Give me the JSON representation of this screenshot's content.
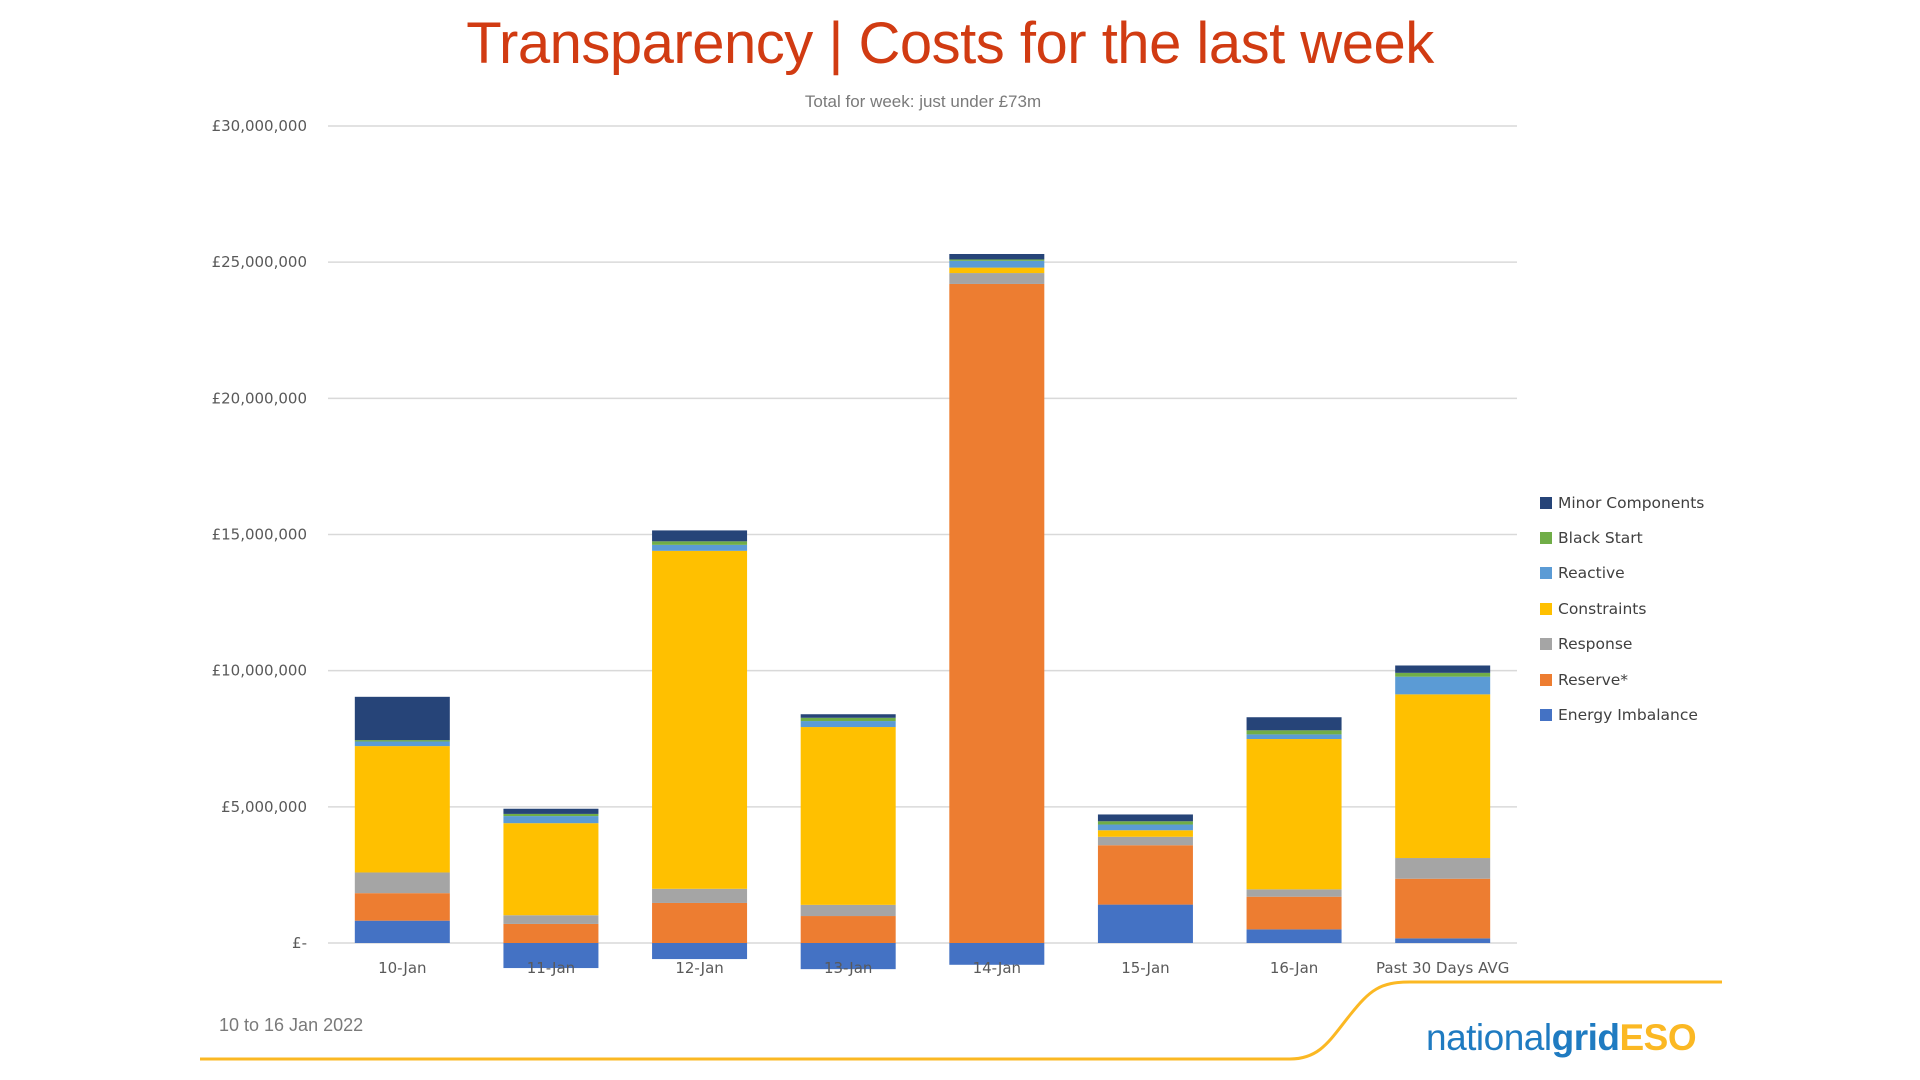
{
  "header": {
    "title": "Transparency | Costs for the last week",
    "subtitle": "Total for week: just under £73m"
  },
  "footer": {
    "date_range": "10 to 16 Jan 2022",
    "logo": {
      "part1": "national",
      "part2": "grid",
      "part3": "ESO"
    }
  },
  "colors": {
    "title": "#d13b12",
    "brand_blue": "#1f7bc1",
    "brand_yellow": "#fbb823"
  },
  "chart_data": {
    "type": "bar",
    "stacked": true,
    "title": "Transparency | Costs for the last week",
    "subtitle": "Total for week: just under £73m",
    "xlabel": "",
    "ylabel": "",
    "ylim": [
      0,
      30000000
    ],
    "yticks": [
      0,
      5000000,
      10000000,
      15000000,
      20000000,
      25000000,
      30000000
    ],
    "ytick_labels": [
      "£-",
      "£5,000,000",
      "£10,000,000",
      "£15,000,000",
      "£20,000,000",
      "£25,000,000",
      "£30,000,000"
    ],
    "grid": true,
    "legend_position": "right",
    "categories": [
      "10-Jan",
      "11-Jan",
      "12-Jan",
      "13-Jan",
      "14-Jan",
      "15-Jan",
      "16-Jan",
      "Past 30 Days AVG"
    ],
    "series": [
      {
        "name": "Energy Imbalance",
        "color": "#4472c4",
        "values": [
          820000,
          -920000,
          -590000,
          -960000,
          -800000,
          1410000,
          500000,
          170000
        ]
      },
      {
        "name": "Reserve*",
        "color": "#ed7d31",
        "values": [
          1010000,
          700000,
          1470000,
          990000,
          24200000,
          2180000,
          1200000,
          2190000
        ]
      },
      {
        "name": "Response",
        "color": "#a5a5a5",
        "values": [
          760000,
          320000,
          520000,
          410000,
          400000,
          310000,
          270000,
          760000
        ]
      },
      {
        "name": "Constraints",
        "color": "#ffc000",
        "values": [
          4640000,
          3380000,
          12410000,
          6530000,
          200000,
          240000,
          5520000,
          6010000
        ]
      },
      {
        "name": "Reactive",
        "color": "#5b9bd5",
        "values": [
          170000,
          260000,
          220000,
          220000,
          250000,
          210000,
          170000,
          650000
        ]
      },
      {
        "name": "Black Start",
        "color": "#70ad47",
        "values": [
          50000,
          80000,
          130000,
          120000,
          50000,
          120000,
          150000,
          140000
        ]
      },
      {
        "name": "Minor Components",
        "color": "#264478",
        "values": [
          1590000,
          190000,
          400000,
          130000,
          200000,
          250000,
          480000,
          270000
        ]
      }
    ],
    "legend_order": [
      "Minor Components",
      "Black Start",
      "Reactive",
      "Constraints",
      "Response",
      "Reserve*",
      "Energy Imbalance"
    ]
  }
}
